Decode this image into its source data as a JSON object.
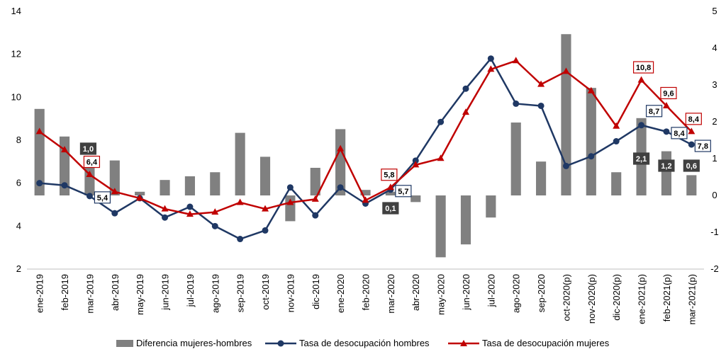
{
  "chart_data": {
    "type": "bar+line",
    "categories": [
      "ene-2019",
      "feb-2019",
      "mar-2019",
      "abr-2019",
      "may-2019",
      "jun-2019",
      "jul-2019",
      "ago-2019",
      "sep-2019",
      "oct-2019",
      "nov-2019",
      "dic-2019",
      "ene-2020",
      "feb-2020",
      "mar-2020",
      "abr-2020",
      "may-2020",
      "jun-2020",
      "jul-2020",
      "ago-2020",
      "sep-2020",
      "oct-2020(p)",
      "nov-2020(p)",
      "dic-2020(p)",
      "ene-2021(p)",
      "feb-2021(p)",
      "mar-2021(p)"
    ],
    "y_left": {
      "ylim": [
        2,
        14
      ],
      "ticks": [
        "2",
        "4",
        "6",
        "8",
        "10",
        "12",
        "14"
      ]
    },
    "y_right": {
      "ylim": [
        -2,
        5
      ],
      "ticks": [
        "-2",
        "-1",
        "0",
        "1",
        "2",
        "3",
        "4",
        "5"
      ]
    },
    "series": [
      {
        "name": "Diferencia mujeres-hombres",
        "kind": "bar",
        "axis": "right",
        "color": "#808080",
        "values": [
          2.35,
          1.6,
          1.0,
          0.95,
          0.1,
          0.42,
          0.52,
          0.63,
          1.7,
          1.05,
          -0.7,
          0.75,
          1.8,
          0.15,
          0.1,
          -0.18,
          -1.68,
          -1.33,
          -0.6,
          1.98,
          0.92,
          4.38,
          2.92,
          0.63,
          2.1,
          1.2,
          0.55
        ]
      },
      {
        "name": "Tasa de desocupación hombres",
        "kind": "line",
        "axis": "left",
        "color": "#1F3864",
        "marker": "circle",
        "values": [
          6.0,
          5.9,
          5.4,
          4.6,
          5.3,
          4.4,
          4.9,
          4.0,
          3.4,
          3.8,
          5.8,
          4.5,
          5.8,
          5.05,
          5.7,
          7.05,
          8.85,
          10.4,
          11.8,
          9.7,
          9.6,
          6.8,
          7.25,
          7.95,
          8.7,
          8.4,
          7.8
        ]
      },
      {
        "name": "Tasa de desocupación mujeres",
        "kind": "line",
        "axis": "left",
        "color": "#C00000",
        "marker": "triangle",
        "values": [
          8.4,
          7.55,
          6.4,
          5.6,
          5.3,
          4.8,
          4.55,
          4.65,
          5.1,
          4.8,
          5.1,
          5.25,
          7.6,
          5.2,
          5.8,
          6.85,
          7.15,
          9.3,
          11.3,
          11.7,
          10.6,
          11.2,
          10.3,
          8.65,
          10.8,
          9.6,
          8.4
        ]
      }
    ],
    "data_labels": {
      "bars": [
        {
          "index": 2,
          "text": "1,0"
        },
        {
          "index": 14,
          "text": "0,1"
        },
        {
          "index": 24,
          "text": "2,1"
        },
        {
          "index": 25,
          "text": "1,2"
        },
        {
          "index": 26,
          "text": "0,6"
        }
      ],
      "men": [
        {
          "index": 2,
          "text": "5,4"
        },
        {
          "index": 14,
          "text": "5,7"
        },
        {
          "index": 24,
          "text": "8,7"
        },
        {
          "index": 25,
          "text": "8,4"
        },
        {
          "index": 26,
          "text": "7,8"
        }
      ],
      "women": [
        {
          "index": 2,
          "text": "6,4"
        },
        {
          "index": 14,
          "text": "5,8"
        },
        {
          "index": 24,
          "text": "10,8"
        },
        {
          "index": 25,
          "text": "9,6"
        },
        {
          "index": 26,
          "text": "8,4"
        }
      ]
    },
    "grid": false,
    "legend_position": "bottom"
  }
}
